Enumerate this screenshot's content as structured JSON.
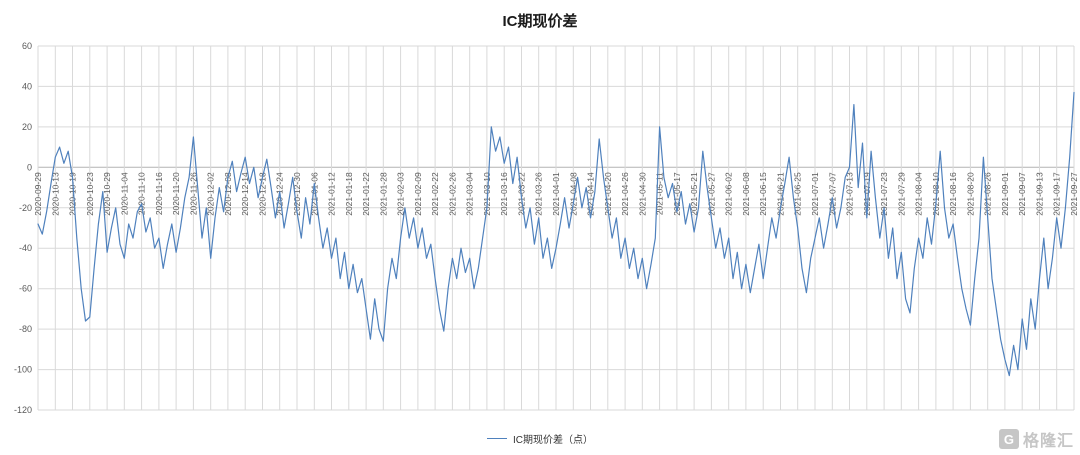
{
  "title": "IC期现价差",
  "legend": {
    "label": "IC期现价差（点）",
    "line_color": "#4F81BD"
  },
  "watermark": {
    "text": "格隆汇"
  },
  "chart_data": {
    "type": "line",
    "title": "IC期现价差",
    "series_name": "IC期现价差（点）",
    "xlabel": "",
    "ylabel": "",
    "grid": true,
    "legend_position": "bottom",
    "line_color": "#4F81BD",
    "ylim": [
      -120,
      60
    ],
    "yticks": [
      60,
      40,
      20,
      0,
      -20,
      -40,
      -60,
      -80,
      -100,
      -120
    ],
    "tick_every": 4,
    "x_tick_labels": [
      "2020-09-29",
      "2020-10-13",
      "2020-10-19",
      "2020-10-23",
      "2020-10-29",
      "2020-11-04",
      "2020-11-10",
      "2020-11-16",
      "2020-11-20",
      "2020-11-26",
      "2020-12-02",
      "2020-12-08",
      "2020-12-14",
      "2020-12-18",
      "2020-12-24",
      "2020-12-30",
      "2021-01-06",
      "2021-01-12",
      "2021-01-18",
      "2021-01-22",
      "2021-01-28",
      "2021-02-03",
      "2021-02-09",
      "2021-02-22",
      "2021-02-26",
      "2021-03-04",
      "2021-03-10",
      "2021-03-16",
      "2021-03-22",
      "2021-03-26",
      "2021-04-01",
      "2021-04-08",
      "2021-04-14",
      "2021-04-20",
      "2021-04-26",
      "2021-04-30",
      "2021-05-11",
      "2021-05-17",
      "2021-05-21",
      "2021-05-27",
      "2021-06-02",
      "2021-06-08",
      "2021-06-15",
      "2021-06-21",
      "2021-06-25",
      "2021-07-01",
      "2021-07-07",
      "2021-07-13",
      "2021-07-19",
      "2021-07-23",
      "2021-07-29",
      "2021-08-04",
      "2021-08-10",
      "2021-08-16",
      "2021-08-20",
      "2021-08-26",
      "2021-09-01",
      "2021-09-07",
      "2021-09-13",
      "2021-09-17",
      "2021-09-27"
    ],
    "values": [
      -28,
      -33,
      -22,
      -8,
      5,
      10,
      2,
      8,
      -5,
      -35,
      -60,
      -76,
      -74,
      -50,
      -28,
      -12,
      -42,
      -30,
      -20,
      -38,
      -45,
      -28,
      -35,
      -22,
      -18,
      -32,
      -25,
      -40,
      -35,
      -50,
      -38,
      -28,
      -42,
      -30,
      -15,
      -5,
      15,
      -10,
      -35,
      -20,
      -45,
      -25,
      -10,
      -22,
      -5,
      3,
      -12,
      -3,
      5,
      -8,
      0,
      -15,
      -5,
      4,
      -10,
      -25,
      -12,
      -30,
      -18,
      -5,
      -22,
      -35,
      -15,
      -28,
      -8,
      -25,
      -40,
      -30,
      -45,
      -35,
      -55,
      -42,
      -60,
      -48,
      -62,
      -55,
      -70,
      -85,
      -65,
      -80,
      -86,
      -60,
      -45,
      -55,
      -35,
      -20,
      -35,
      -25,
      -40,
      -30,
      -45,
      -38,
      -55,
      -70,
      -81,
      -60,
      -45,
      -55,
      -40,
      -52,
      -45,
      -60,
      -50,
      -35,
      -20,
      20,
      8,
      15,
      2,
      10,
      -8,
      5,
      -15,
      -30,
      -20,
      -38,
      -25,
      -45,
      -35,
      -50,
      -40,
      -28,
      -15,
      -30,
      -18,
      -5,
      -20,
      -10,
      -25,
      -12,
      14,
      -5,
      -20,
      -35,
      -25,
      -45,
      -35,
      -50,
      -40,
      -55,
      -45,
      -60,
      -48,
      -35,
      20,
      -5,
      -15,
      -8,
      -22,
      -12,
      -28,
      -18,
      -32,
      -20,
      8,
      -10,
      -25,
      -40,
      -30,
      -45,
      -35,
      -55,
      -42,
      -60,
      -48,
      -62,
      -50,
      -38,
      -55,
      -40,
      -25,
      -35,
      -20,
      -8,
      5,
      -15,
      -30,
      -50,
      -62,
      -45,
      -35,
      -25,
      -40,
      -28,
      -15,
      -30,
      -20,
      -5,
      0,
      31,
      -10,
      12,
      -25,
      8,
      -15,
      -35,
      -20,
      -45,
      -30,
      -55,
      -42,
      -65,
      -72,
      -50,
      -35,
      -45,
      -25,
      -38,
      -18,
      8,
      -20,
      -35,
      -28,
      -45,
      -60,
      -70,
      -78,
      -55,
      -35,
      5,
      -25,
      -55,
      -70,
      -85,
      -95,
      -103,
      -88,
      -100,
      -75,
      -90,
      -65,
      -80,
      -55,
      -35,
      -60,
      -45,
      -25,
      -40,
      -20,
      5,
      37
    ]
  }
}
